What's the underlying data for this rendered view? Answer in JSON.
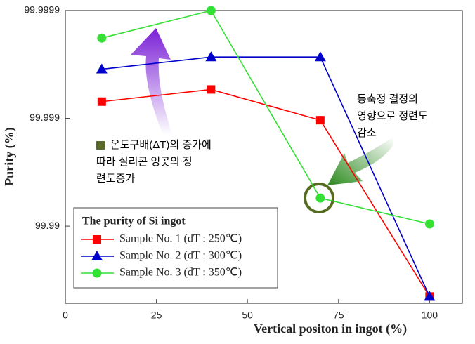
{
  "chart_data": {
    "type": "line",
    "xlabel": "Vertical positon in ingot (%)",
    "ylabel": "Purity (%)",
    "x": [
      10,
      40,
      70,
      100
    ],
    "xlim": [
      0,
      109
    ],
    "xticks": [
      0,
      25,
      50,
      75,
      100
    ],
    "ylim": [
      99.948,
      99.9999
    ],
    "yticks": [
      99.99,
      99.999,
      99.9999
    ],
    "yscale": "log-impurity",
    "legend_title": "The purity of Si ingot",
    "legend": "lower-left",
    "series": [
      {
        "name": "Sample No. 1 (dT : 250℃)",
        "color": "#ff0000",
        "marker": "square",
        "values": [
          99.9993,
          99.99946,
          99.99896,
          99.955
        ]
      },
      {
        "name": "Sample No. 2 (dT : 300℃)",
        "color": "#0000cc",
        "marker": "triangle",
        "values": [
          99.99965,
          99.99973,
          99.99973,
          99.955
        ]
      },
      {
        "name": "Sample No. 3 (dT : 350℃)",
        "color": "#33e033",
        "marker": "circle",
        "values": [
          99.99982,
          99.9999,
          99.9945,
          99.99045
        ]
      }
    ],
    "annotations": [
      {
        "lines": [
          "온도구배(ΔT)의 증가에",
          "따라 실리콘 잉곳의 정",
          "련도증가"
        ]
      },
      {
        "lines": [
          "등축정 결정의",
          "영향으로 정련도",
          "감소"
        ]
      }
    ]
  }
}
